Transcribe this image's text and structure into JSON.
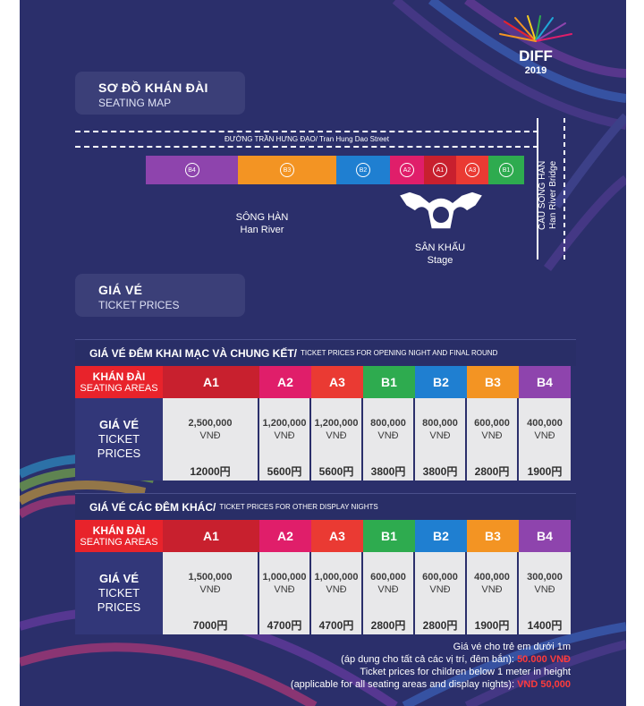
{
  "logo": {
    "name": "DIFF",
    "year": "2019"
  },
  "seating_section": {
    "title_vi": "SƠ ĐỒ KHÁN ĐÀI",
    "title_en": "SEATING MAP"
  },
  "map": {
    "street_label": "ĐƯỜNG TRẦN HƯNG ĐẠO/ Tran Hung Dao Street",
    "bridge_label_vi": "CẦU SÔNG HÀN",
    "bridge_label_en": "Han River Bridge",
    "river_label_vi": "SÔNG HÀN",
    "river_label_en": "Han River",
    "stage_label_vi": "SÂN KHẤU",
    "stage_label_en": "Stage",
    "segments": [
      {
        "label": "B4",
        "color": "#8e44ad"
      },
      {
        "label": "B3",
        "color": "#f39423"
      },
      {
        "label": "B2",
        "color": "#1f7fd1"
      },
      {
        "label": "A2",
        "color": "#e01e6a"
      },
      {
        "label": "A1",
        "color": "#c8202e"
      },
      {
        "label": "A3",
        "color": "#ea3a33"
      },
      {
        "label": "B1",
        "color": "#2eab4f"
      }
    ]
  },
  "price_section": {
    "title_vi": "GIÁ VÉ",
    "title_en": "TICKET PRICES"
  },
  "tables": [
    {
      "title_vi": "GIÁ VÉ ĐÊM KHAI MẠC VÀ CHUNG KẾT/",
      "title_en": "TICKET PRICES FOR OPENING NIGHT AND FINAL ROUND",
      "area_label_vi": "KHÁN ĐÀI",
      "area_label_en": "SEATING AREAS",
      "price_label_vi": "GIÁ VÉ",
      "price_label_en_1": "TICKET",
      "price_label_en_2": "PRICES",
      "areas": [
        {
          "name": "A1",
          "color": "#c8202e",
          "price": "2,500,000",
          "currency": "VNĐ",
          "yen": "12000円"
        },
        {
          "name": "A2",
          "color": "#e01e6a",
          "price": "1,200,000",
          "currency": "VNĐ",
          "yen": "5600円"
        },
        {
          "name": "A3",
          "color": "#ea3a33",
          "price": "1,200,000",
          "currency": "VNĐ",
          "yen": "5600円"
        },
        {
          "name": "B1",
          "color": "#2eab4f",
          "price": "800,000",
          "currency": "VNĐ",
          "yen": "3800円"
        },
        {
          "name": "B2",
          "color": "#1f7fd1",
          "price": "800,000",
          "currency": "VNĐ",
          "yen": "3800円"
        },
        {
          "name": "B3",
          "color": "#f39423",
          "price": "600,000",
          "currency": "VNĐ",
          "yen": "2800円"
        },
        {
          "name": "B4",
          "color": "#8e44ad",
          "price": "400,000",
          "currency": "VNĐ",
          "yen": "1900円"
        }
      ]
    },
    {
      "title_vi": "GIÁ VÉ CÁC ĐÊM KHÁC/",
      "title_en": "TICKET PRICES FOR OTHER DISPLAY NIGHTS",
      "area_label_vi": "KHÁN ĐÀI",
      "area_label_en": "SEATING AREAS",
      "price_label_vi": "GIÁ VÉ",
      "price_label_en_1": "TICKET",
      "price_label_en_2": "PRICES",
      "areas": [
        {
          "name": "A1",
          "color": "#c8202e",
          "price": "1,500,000",
          "currency": "VNĐ",
          "yen": "7000円"
        },
        {
          "name": "A2",
          "color": "#e01e6a",
          "price": "1,000,000",
          "currency": "VNĐ",
          "yen": "4700円"
        },
        {
          "name": "A3",
          "color": "#ea3a33",
          "price": "1,000,000",
          "currency": "VNĐ",
          "yen": "4700円"
        },
        {
          "name": "B1",
          "color": "#2eab4f",
          "price": "600,000",
          "currency": "VNĐ",
          "yen": "2800円"
        },
        {
          "name": "B2",
          "color": "#1f7fd1",
          "price": "600,000",
          "currency": "VNĐ",
          "yen": "2800円"
        },
        {
          "name": "B3",
          "color": "#f39423",
          "price": "400,000",
          "currency": "VNĐ",
          "yen": "1900円"
        },
        {
          "name": "B4",
          "color": "#8e44ad",
          "price": "300,000",
          "currency": "VNĐ",
          "yen": "1400円"
        }
      ]
    }
  ],
  "footnote": {
    "line1": "Giá vé cho trẻ em dưới 1m",
    "line2_text": "(áp dụng cho tất cả các vị trí, đêm bắn):",
    "line2_price": "50.000 VNĐ",
    "line3": "Ticket prices for children below 1 meter in height",
    "line4_text": "(applicable for all seating areas and display nights):",
    "line4_price": "VND 50,000"
  },
  "colors": {
    "background": "#2b2f6b",
    "panel": "#3b3f78",
    "label_red": "#e8232b",
    "price_cell": "#e8e8ea"
  }
}
